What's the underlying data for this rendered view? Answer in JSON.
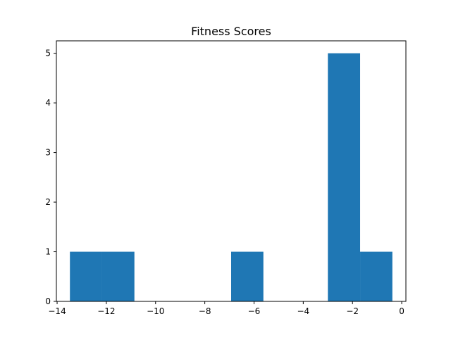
{
  "chart_data": {
    "type": "bar",
    "title": "Fitness Scores",
    "xlabel": "",
    "ylabel": "",
    "bins": [
      {
        "x0": -13.48,
        "x1": -12.17,
        "count": 1
      },
      {
        "x0": -12.17,
        "x1": -10.86,
        "count": 1
      },
      {
        "x0": -10.86,
        "x1": -9.55,
        "count": 0
      },
      {
        "x0": -9.55,
        "x1": -8.24,
        "count": 0
      },
      {
        "x0": -8.24,
        "x1": -6.93,
        "count": 0
      },
      {
        "x0": -6.93,
        "x1": -5.62,
        "count": 1
      },
      {
        "x0": -5.62,
        "x1": -4.31,
        "count": 0
      },
      {
        "x0": -4.31,
        "x1": -3.0,
        "count": 0
      },
      {
        "x0": -3.0,
        "x1": -1.69,
        "count": 5
      },
      {
        "x0": -1.69,
        "x1": -0.38,
        "count": 1
      }
    ],
    "xlim": [
      -14.03,
      0.17
    ],
    "ylim": [
      0,
      5.25
    ],
    "xticks": [
      -14,
      -12,
      -10,
      -8,
      -6,
      -4,
      -2,
      0
    ],
    "xtick_labels": [
      "−14",
      "−12",
      "−10",
      "−8",
      "−6",
      "−4",
      "−2",
      "0"
    ],
    "yticks": [
      0,
      1,
      2,
      3,
      4,
      5
    ],
    "ytick_labels": [
      "0",
      "1",
      "2",
      "3",
      "4",
      "5"
    ],
    "bar_color": "#1f77b4",
    "grid": false,
    "legend": "none"
  }
}
